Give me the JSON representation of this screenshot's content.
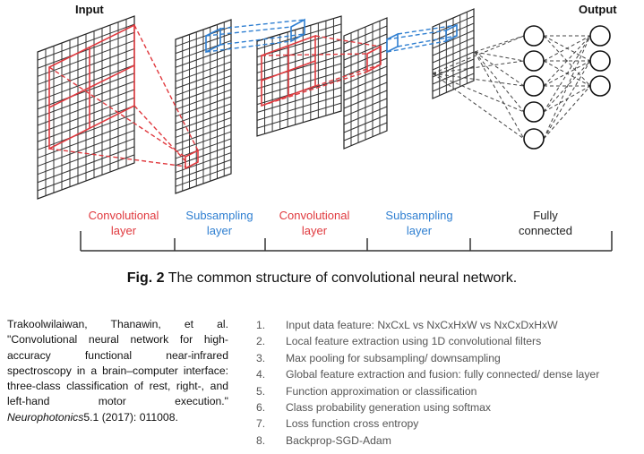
{
  "diagram": {
    "input_label": "Input",
    "output_label": "Output",
    "stages": [
      {
        "label_line1": "Convolutional",
        "label_line2": "layer",
        "color": "#e0393e"
      },
      {
        "label_line1": "Subsampling",
        "label_line2": "layer",
        "color": "#2f7fd1"
      },
      {
        "label_line1": "Convolutional",
        "label_line2": "layer",
        "color": "#e0393e"
      },
      {
        "label_line1": "Subsampling",
        "label_line2": "layer",
        "color": "#2f7fd1"
      },
      {
        "label_line1": "Fully",
        "label_line2": "connected",
        "color": "#222222"
      }
    ]
  },
  "caption": {
    "prefix": "Fig. 2",
    "text": " The common structure of convolutional neural network."
  },
  "citation": {
    "text_before": "Trakoolwilaiwan, Thanawin, et al. \"Convolutional neural network for high-accuracy functional near-infrared spectroscopy in a brain–computer interface: three-class classification of rest, right-, and left-hand motor execution.\" ",
    "journal": "Neurophotonics",
    "text_after": "5.1 (2017): 011008."
  },
  "steps": [
    {
      "num": "1.",
      "text": "Input data feature: NxCxL vs NxCxHxW vs NxCxDxHxW"
    },
    {
      "num": "2.",
      "text": "Local feature extraction using 1D convolutional filters"
    },
    {
      "num": "3.",
      "text": "Max pooling for subsampling/ downsampling"
    },
    {
      "num": "4.",
      "text": "Global feature extraction and fusion: fully connected/ dense layer"
    },
    {
      "num": "5.",
      "text": "Function approximation or classification"
    },
    {
      "num": "6.",
      "text": "Class probability generation using softmax"
    },
    {
      "num": "7.",
      "text": "Loss function cross entropy"
    },
    {
      "num": "8.",
      "text": "Backprop-SGD-Adam"
    }
  ]
}
